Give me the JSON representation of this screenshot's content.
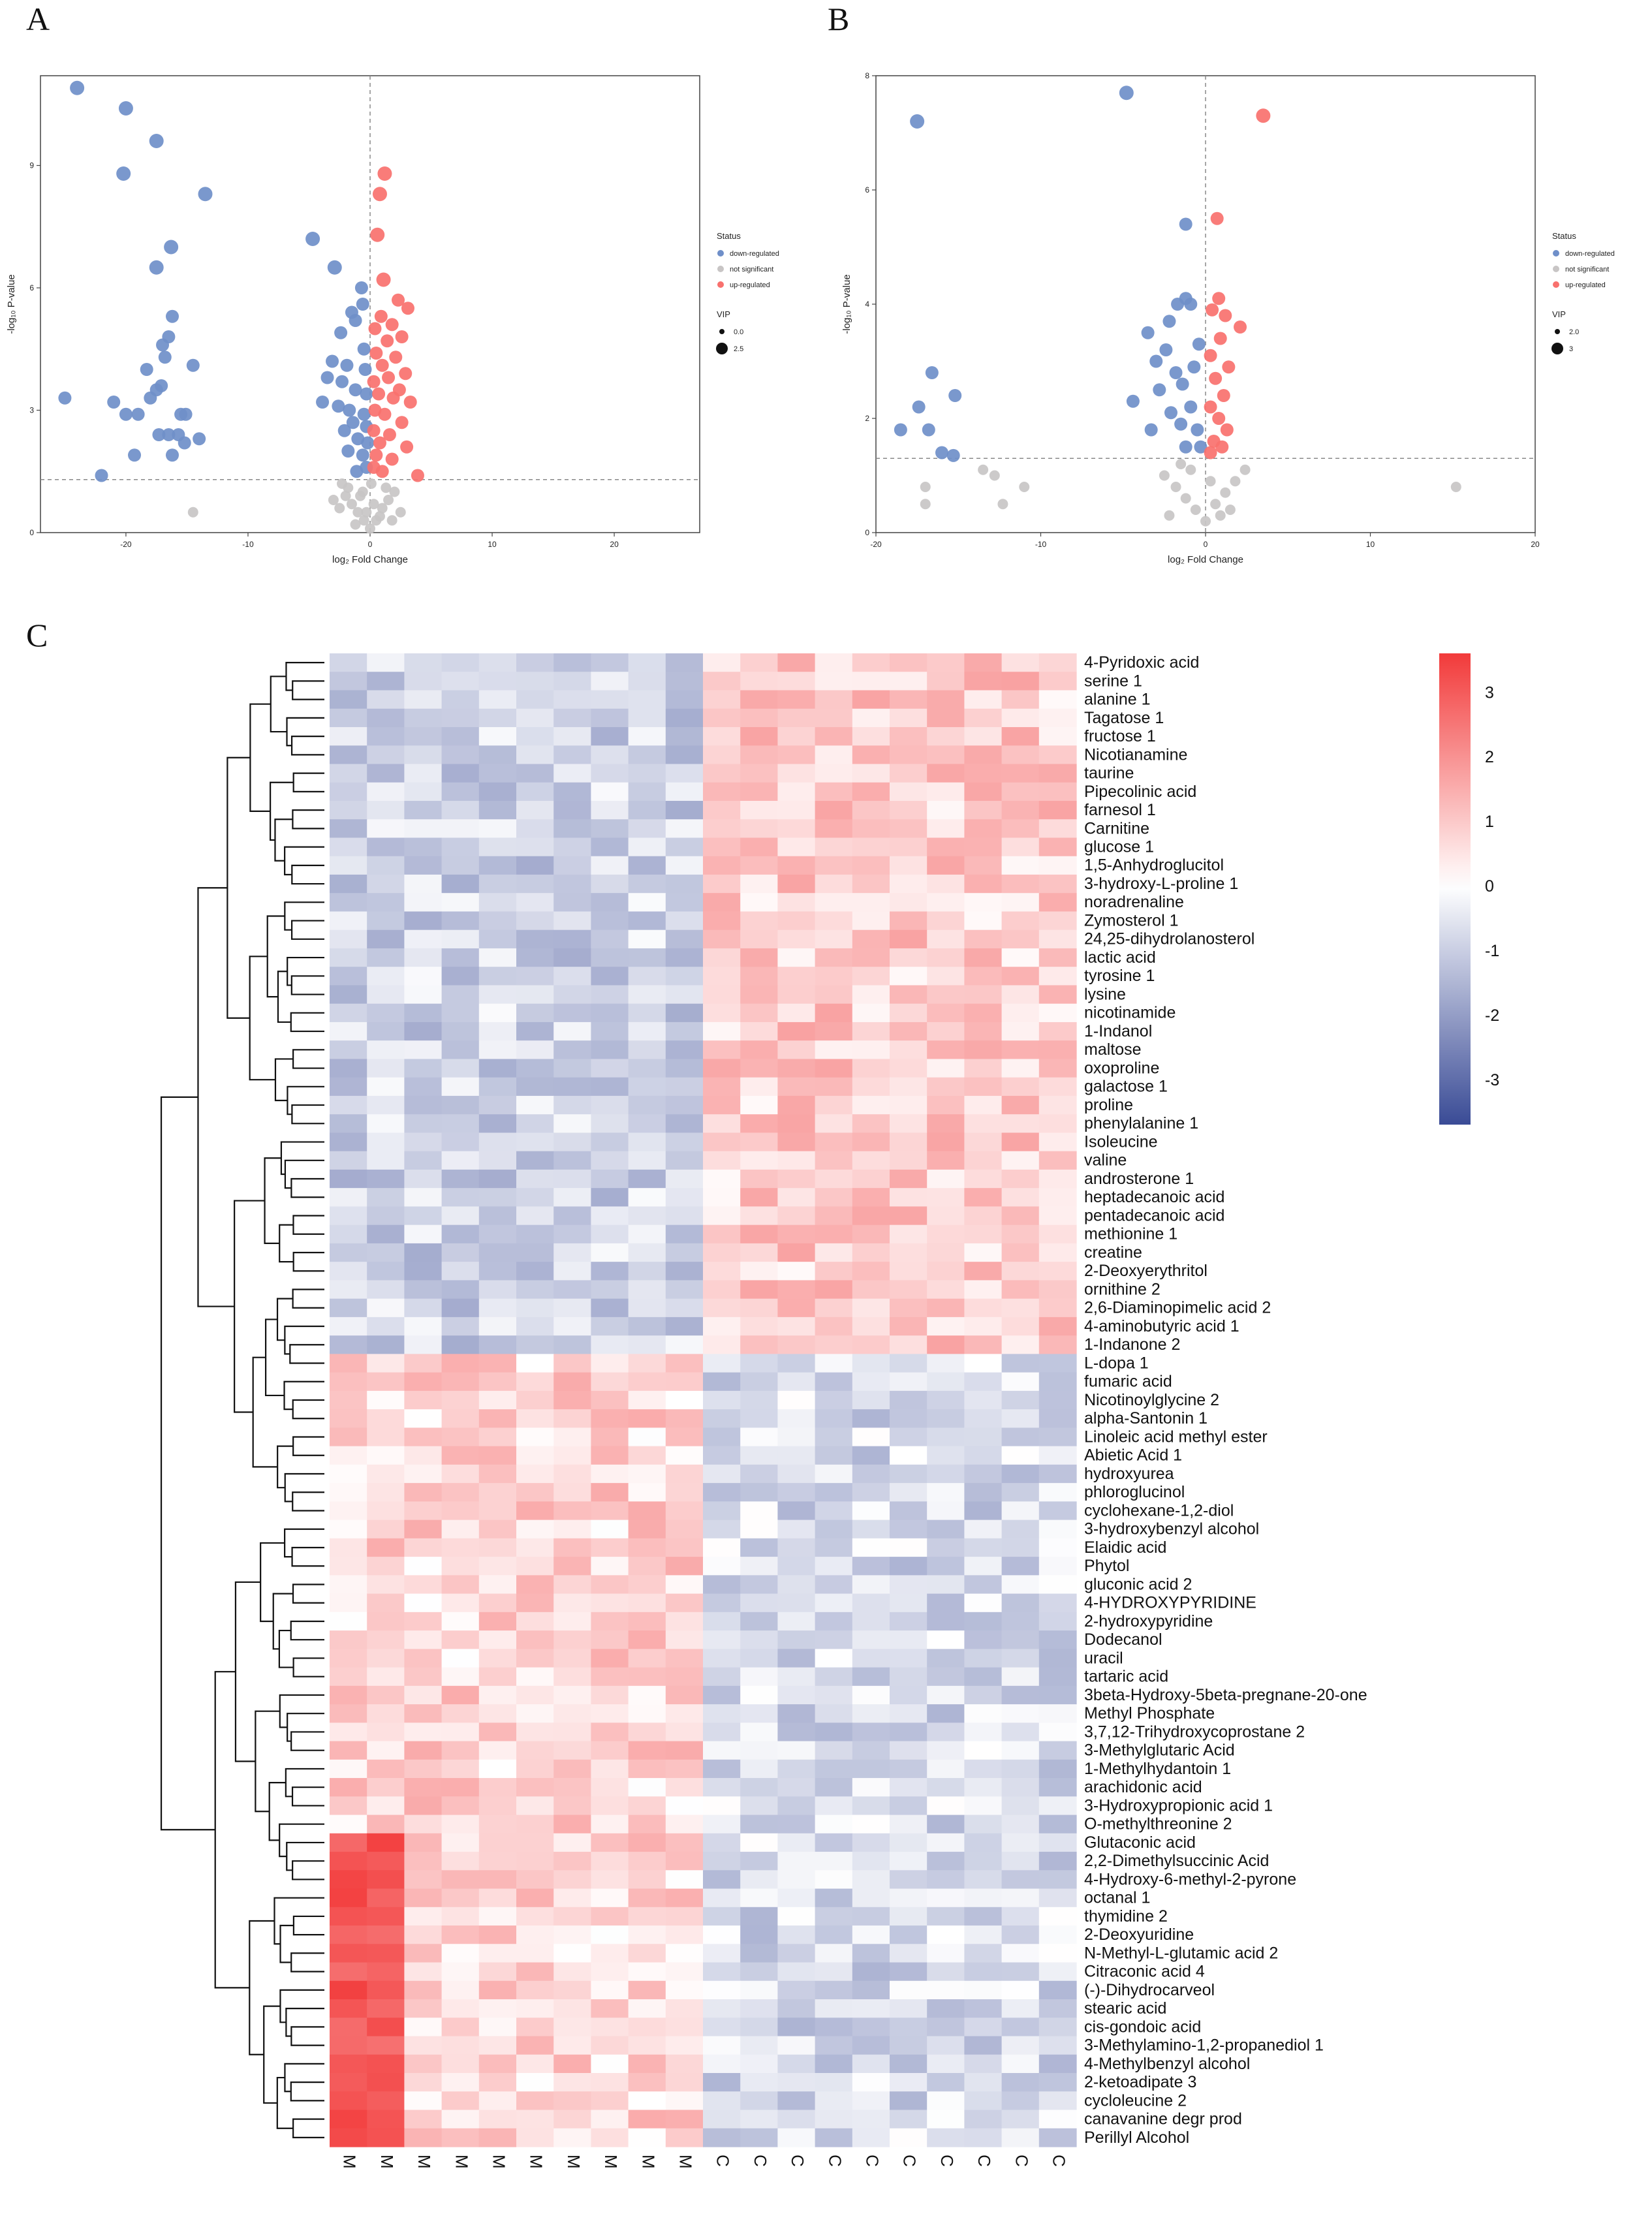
{
  "panels": {
    "a": "A",
    "b": "B",
    "c": "C"
  },
  "colors": {
    "down": "#6f8fc9",
    "ns": "#c8c5c5",
    "up": "#f8716e",
    "heat_low": "#3a4b96",
    "heat_mid": "#ffffff",
    "heat_high": "#f23a3a"
  },
  "volcano_a": {
    "xlabel": "log₂ Fold Change",
    "ylabel": "-log₁₀ P-value",
    "xlim": [
      -27,
      27
    ],
    "ylim": [
      0,
      11.2
    ],
    "xticks": [
      -20,
      -10,
      0,
      10,
      20
    ],
    "yticks": [
      0,
      3,
      6,
      9
    ],
    "vline": 0,
    "hline": 1.3,
    "legend": {
      "status_title": "Status",
      "status_items": [
        "down-regulated",
        "not significant",
        "up-regulated"
      ],
      "vip_title": "VIP",
      "vip_items": [
        "0.0",
        "2.5"
      ]
    },
    "points": {
      "down": [
        [
          -24,
          10.9
        ],
        [
          -20,
          10.4
        ],
        [
          -17.5,
          9.6
        ],
        [
          -20.2,
          8.8
        ],
        [
          -13.5,
          8.3
        ],
        [
          -16.3,
          7
        ],
        [
          -17.5,
          6.5
        ],
        [
          -16.2,
          5.3
        ],
        [
          -16.5,
          4.8
        ],
        [
          -17,
          4.6
        ],
        [
          -16.8,
          4.3
        ],
        [
          -25,
          3.3
        ],
        [
          -18.3,
          4
        ],
        [
          -17.1,
          3.6
        ],
        [
          -17.5,
          3.5
        ],
        [
          -14.5,
          4.1
        ],
        [
          -18,
          3.3
        ],
        [
          -21,
          3.2
        ],
        [
          -19,
          2.9
        ],
        [
          -20,
          2.9
        ],
        [
          -15.5,
          2.9
        ],
        [
          -15.1,
          2.9
        ],
        [
          -17.3,
          2.4
        ],
        [
          -16.5,
          2.4
        ],
        [
          -15.7,
          2.4
        ],
        [
          -14,
          2.3
        ],
        [
          -15.2,
          2.2
        ],
        [
          -19.3,
          1.9
        ],
        [
          -16.2,
          1.9
        ],
        [
          -22,
          1.4
        ],
        [
          -4.7,
          7.2
        ],
        [
          -2.9,
          6.5
        ],
        [
          -0.7,
          6
        ],
        [
          -1.5,
          5.4
        ],
        [
          -0.6,
          5.6
        ],
        [
          -1.2,
          5.2
        ],
        [
          -2.4,
          4.9
        ],
        [
          -0.5,
          4.5
        ],
        [
          -3.1,
          4.2
        ],
        [
          -1.9,
          4.1
        ],
        [
          -0.4,
          4
        ],
        [
          -3.5,
          3.8
        ],
        [
          -2.3,
          3.7
        ],
        [
          -1.2,
          3.5
        ],
        [
          -0.3,
          3.4
        ],
        [
          -3.9,
          3.2
        ],
        [
          -2.6,
          3.1
        ],
        [
          -1.7,
          3
        ],
        [
          -0.5,
          2.9
        ],
        [
          -1.4,
          2.7
        ],
        [
          -0.3,
          2.6
        ],
        [
          -2.1,
          2.5
        ],
        [
          -1,
          2.3
        ],
        [
          -0.2,
          2.2
        ],
        [
          -1.8,
          2
        ],
        [
          -0.6,
          1.9
        ],
        [
          -0.3,
          1.6
        ],
        [
          -1.1,
          1.5
        ]
      ],
      "up": [
        [
          1.2,
          8.8
        ],
        [
          0.8,
          8.3
        ],
        [
          0.6,
          7.3
        ],
        [
          1.1,
          6.2
        ],
        [
          2.3,
          5.7
        ],
        [
          3.1,
          5.5
        ],
        [
          0.9,
          5.3
        ],
        [
          1.8,
          5.1
        ],
        [
          0.4,
          5
        ],
        [
          2.6,
          4.8
        ],
        [
          1.4,
          4.7
        ],
        [
          0.5,
          4.4
        ],
        [
          2.1,
          4.3
        ],
        [
          1,
          4.1
        ],
        [
          2.9,
          3.9
        ],
        [
          1.5,
          3.8
        ],
        [
          0.3,
          3.7
        ],
        [
          2.4,
          3.5
        ],
        [
          0.7,
          3.4
        ],
        [
          1.9,
          3.3
        ],
        [
          3.3,
          3.2
        ],
        [
          0.4,
          3
        ],
        [
          1.2,
          2.9
        ],
        [
          2.6,
          2.7
        ],
        [
          0.3,
          2.5
        ],
        [
          1.6,
          2.4
        ],
        [
          0.8,
          2.2
        ],
        [
          3,
          2.1
        ],
        [
          0.5,
          1.9
        ],
        [
          1.8,
          1.8
        ],
        [
          0.3,
          1.6
        ],
        [
          3.9,
          1.4
        ],
        [
          1,
          1.5
        ]
      ],
      "ns": [
        [
          -14.5,
          0.5
        ],
        [
          -3,
          0.8
        ],
        [
          -2.5,
          0.6
        ],
        [
          -2,
          0.9
        ],
        [
          -1.5,
          0.7
        ],
        [
          -1,
          0.5
        ],
        [
          -0.5,
          0.3
        ],
        [
          0,
          0.1
        ],
        [
          0.5,
          0.3
        ],
        [
          1,
          0.6
        ],
        [
          1.5,
          0.8
        ],
        [
          2,
          1
        ],
        [
          -1.8,
          1.1
        ],
        [
          -0.8,
          0.9
        ],
        [
          0.3,
          0.7
        ],
        [
          0.8,
          0.4
        ],
        [
          -0.3,
          0.5
        ],
        [
          1.3,
          1.1
        ],
        [
          2.5,
          0.5
        ],
        [
          -2.3,
          1.2
        ],
        [
          0.1,
          1.2
        ],
        [
          -1.2,
          0.2
        ],
        [
          1.8,
          0.3
        ],
        [
          -0.6,
          1
        ]
      ]
    }
  },
  "volcano_b": {
    "xlabel": "log₂ Fold Change",
    "ylabel": "-log₁₀ P-value",
    "xlim": [
      -20,
      20
    ],
    "ylim": [
      0,
      8
    ],
    "xticks": [
      -20,
      -10,
      0,
      10,
      20
    ],
    "yticks": [
      0,
      2,
      4,
      6,
      8
    ],
    "vline": 0,
    "hline": 1.3,
    "legend": {
      "status_title": "Status",
      "status_items": [
        "down-regulated",
        "not significant",
        "up-regulated"
      ],
      "vip_title": "VIP",
      "vip_items": [
        "2.0",
        "3"
      ]
    },
    "points": {
      "down": [
        [
          -17.5,
          7.2
        ],
        [
          -4.8,
          7.7
        ],
        [
          -1.2,
          5.4
        ],
        [
          -16.6,
          2.8
        ],
        [
          -17.4,
          2.2
        ],
        [
          -15.2,
          2.4
        ],
        [
          -18.5,
          1.8
        ],
        [
          -16.8,
          1.8
        ],
        [
          -16,
          1.4
        ],
        [
          -15.3,
          1.35
        ],
        [
          -4.4,
          2.3
        ],
        [
          -3.5,
          3.5
        ],
        [
          -3,
          3
        ],
        [
          -2.8,
          2.5
        ],
        [
          -3.3,
          1.8
        ],
        [
          -2.2,
          3.7
        ],
        [
          -1.7,
          4
        ],
        [
          -1.2,
          4.1
        ],
        [
          -0.9,
          4
        ],
        [
          -2.4,
          3.2
        ],
        [
          -1.8,
          2.8
        ],
        [
          -1.4,
          2.6
        ],
        [
          -0.7,
          2.9
        ],
        [
          -0.4,
          3.3
        ],
        [
          -2.1,
          2.1
        ],
        [
          -1.5,
          1.9
        ],
        [
          -0.9,
          2.2
        ],
        [
          -0.5,
          1.8
        ],
        [
          -1.2,
          1.5
        ],
        [
          -0.3,
          1.5
        ]
      ],
      "up": [
        [
          3.5,
          7.3
        ],
        [
          0.7,
          5.5
        ],
        [
          0.8,
          4.1
        ],
        [
          0.4,
          3.9
        ],
        [
          1.2,
          3.8
        ],
        [
          2.1,
          3.6
        ],
        [
          0.9,
          3.4
        ],
        [
          0.3,
          3.1
        ],
        [
          1.4,
          2.9
        ],
        [
          0.6,
          2.7
        ],
        [
          1.1,
          2.4
        ],
        [
          0.3,
          2.2
        ],
        [
          0.8,
          2
        ],
        [
          1.3,
          1.8
        ],
        [
          0.5,
          1.6
        ],
        [
          1,
          1.5
        ],
        [
          0.3,
          1.4
        ]
      ],
      "ns": [
        [
          -17,
          0.8
        ],
        [
          -17,
          0.5
        ],
        [
          -13.5,
          1.1
        ],
        [
          -12.8,
          1
        ],
        [
          -11,
          0.8
        ],
        [
          -12.3,
          0.5
        ],
        [
          15.2,
          0.8
        ],
        [
          -2.5,
          1
        ],
        [
          -1.8,
          0.8
        ],
        [
          -1.2,
          0.6
        ],
        [
          -0.6,
          0.4
        ],
        [
          0,
          0.2
        ],
        [
          0.6,
          0.5
        ],
        [
          1.2,
          0.7
        ],
        [
          1.8,
          0.9
        ],
        [
          2.4,
          1.1
        ],
        [
          -2.2,
          0.3
        ],
        [
          -0.9,
          1.1
        ],
        [
          0.9,
          0.3
        ],
        [
          -1.5,
          1.2
        ],
        [
          0.3,
          0.9
        ],
        [
          1.5,
          0.4
        ]
      ]
    }
  },
  "heatmap": {
    "columns": [
      "M",
      "M",
      "M",
      "M",
      "M",
      "M",
      "M",
      "M",
      "M",
      "M",
      "C",
      "C",
      "C",
      "C",
      "C",
      "C",
      "C",
      "C",
      "C",
      "C"
    ],
    "rows": [
      "4-Pyridoxic acid",
      "serine 1",
      "alanine 1",
      "Tagatose 1",
      "fructose 1",
      "Nicotianamine",
      "taurine",
      "Pipecolinic acid",
      "farnesol 1",
      "Carnitine",
      "glucose 1",
      "1,5-Anhydroglucitol",
      "3-hydroxy-L-proline 1",
      "noradrenaline",
      "Zymosterol 1",
      "24,25-dihydrolanosterol",
      "lactic acid",
      "tyrosine 1",
      "lysine",
      "nicotinamide",
      "1-Indanol",
      "maltose",
      "oxoproline",
      "galactose 1",
      "proline",
      "phenylalanine 1",
      "Isoleucine",
      "valine",
      "androsterone 1",
      "heptadecanoic acid",
      "pentadecanoic acid",
      "methionine 1",
      "creatine",
      "2-Deoxyerythritol",
      "ornithine 2",
      "2,6-Diaminopimelic acid 2",
      "4-aminobutyric acid 1",
      "1-Indanone 2",
      "L-dopa 1",
      "fumaric acid",
      "Nicotinoylglycine 2",
      "alpha-Santonin 1",
      "Linoleic acid methyl ester",
      "Abietic Acid 1",
      "hydroxyurea",
      "phloroglucinol",
      "cyclohexane-1,2-diol",
      "3-hydroxybenzyl alcohol",
      "Elaidic acid",
      "Phytol",
      "gluconic acid 2",
      "4-HYDROXYPYRIDINE",
      "2-hydroxypyridine",
      "Dodecanol",
      "uracil",
      "tartaric acid",
      "3beta-Hydroxy-5beta-pregnane-20-one",
      "Methyl Phosphate",
      "3,7,12-Trihydroxycoprostane 2",
      "3-Methylglutaric Acid",
      "1-Methylhydantoin 1",
      "arachidonic acid",
      "3-Hydroxypropionic acid 1",
      "O-methylthreonine 2",
      "Glutaconic acid",
      "2,2-Dimethylsuccinic Acid",
      "4-Hydroxy-6-methyl-2-pyrone",
      "octanal 1",
      "thymidine 2",
      "2-Deoxyuridine",
      "N-Methyl-L-glutamic acid 2",
      "Citraconic acid 4",
      "(-)-Dihydrocarveol",
      "stearic acid",
      "cis-gondoic acid",
      "3-Methylamino-1,2-propanediol 1",
      "4-Methylbenzyl alcohol",
      "2-ketoadipate 3",
      "cycloleucine 2",
      "canavanine degr prod",
      "Perillyl Alcohol"
    ],
    "colorbar": {
      "min": -3.7,
      "max": 3.6,
      "ticks": [
        3,
        2,
        1,
        0,
        -1,
        -2,
        -3
      ]
    }
  }
}
